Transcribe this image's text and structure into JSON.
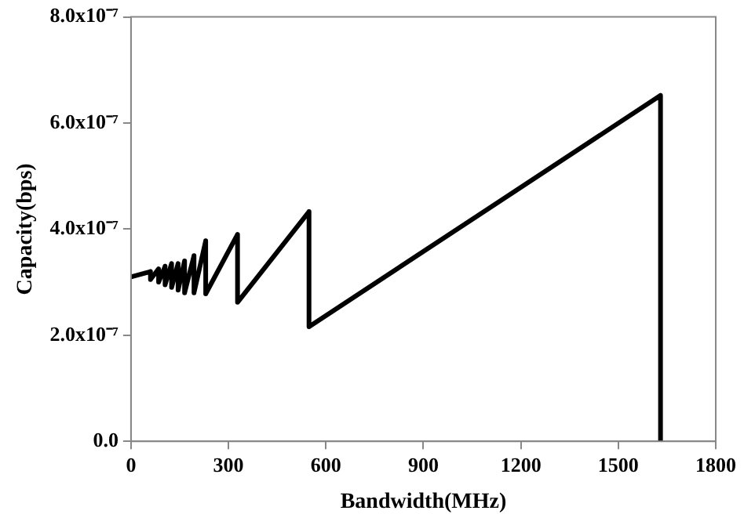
{
  "chart_data": {
    "type": "line",
    "xlabel": "Bandwidth(MHz)",
    "ylabel": "Capacity(bps)",
    "x": [
      0,
      60,
      60,
      85,
      85,
      105,
      105,
      125,
      125,
      145,
      145,
      165,
      165,
      194,
      194,
      230,
      230,
      328,
      328,
      548,
      548,
      1630,
      1630
    ],
    "values": [
      3.1e-07,
      3.2e-07,
      3.05e-07,
      3.25e-07,
      3e-07,
      3.3e-07,
      2.95e-07,
      3.35e-07,
      2.9e-07,
      3.35e-07,
      2.85e-07,
      3.4e-07,
      2.8e-07,
      3.5e-07,
      2.8e-07,
      3.78e-07,
      2.78e-07,
      3.9e-07,
      2.62e-07,
      4.33e-07,
      2.16e-07,
      6.52e-07,
      0
    ],
    "color": "#000000",
    "marker": "none",
    "line_style": "solid",
    "grid": false,
    "legend": false,
    "xlim": [
      0,
      1800
    ],
    "xticks": [
      0,
      300,
      600,
      900,
      1200,
      1500,
      1800
    ],
    "ylim": [
      0,
      8e-07
    ],
    "yticks": [
      {
        "value": 0,
        "label": "0.0"
      },
      {
        "value": 2e-07,
        "label": "2.0x10⁻⁷"
      },
      {
        "value": 4e-07,
        "label": "4.0x10⁻⁷"
      },
      {
        "value": 6e-07,
        "label": "6.0x10⁻⁷"
      },
      {
        "value": 8e-07,
        "label": "8.0x10⁻⁷"
      }
    ]
  }
}
